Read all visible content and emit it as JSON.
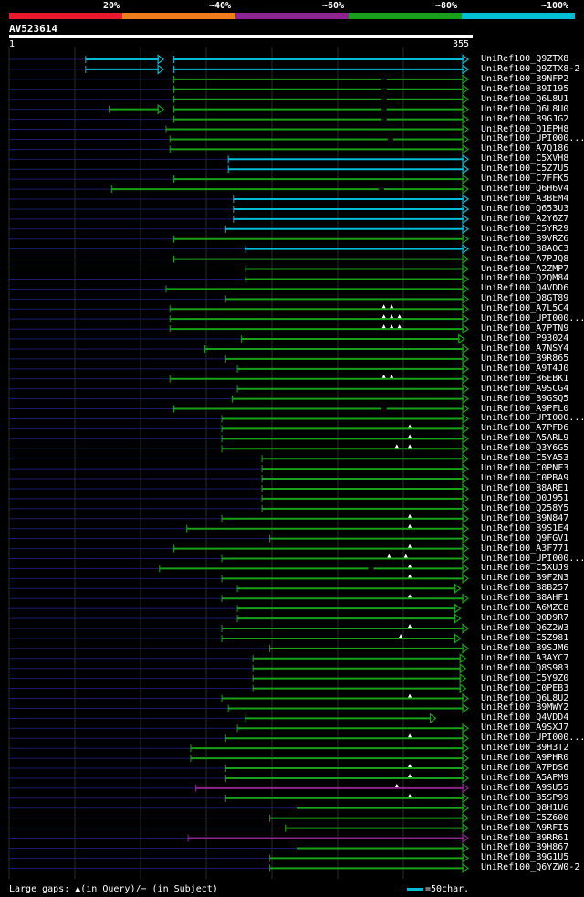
{
  "legend": {
    "labels": [
      "20%",
      "~40%",
      "~60%",
      "~80%",
      "~100%"
    ],
    "colors": [
      "#e8192c",
      "#f07d1d",
      "#8e248e",
      "#18a018",
      "#00bcd4"
    ]
  },
  "query": {
    "name": "AV523614",
    "start": "1",
    "end": "355",
    "length": 355
  },
  "footer": {
    "gaps_text": "Large gaps: ▲(in Query)/− (in Subject)",
    "scale_text": "=50char."
  },
  "hits": [
    {
      "name": "UniRef100_Q9ZTX8",
      "color": "cyan",
      "segments": [
        [
          60,
          120,
          true
        ],
        [
          128,
          355,
          true
        ]
      ],
      "gaps": []
    },
    {
      "name": "UniRef100_Q9ZTX8-2",
      "color": "cyan",
      "segments": [
        [
          60,
          120,
          true
        ],
        [
          128,
          355,
          true
        ]
      ],
      "gaps": []
    },
    {
      "name": "UniRef100_B9NFP2",
      "color": "green",
      "segments": [
        [
          128,
          355,
          true
        ]
      ],
      "gaps": [
        {
          "t": "s",
          "p": 290
        }
      ]
    },
    {
      "name": "UniRef100_B9I195",
      "color": "green",
      "segments": [
        [
          128,
          355,
          true
        ]
      ],
      "gaps": [
        {
          "t": "s",
          "p": 290
        }
      ]
    },
    {
      "name": "UniRef100_Q6L8U1",
      "color": "green",
      "segments": [
        [
          128,
          355,
          true
        ]
      ],
      "gaps": [
        {
          "t": "s",
          "p": 290
        }
      ]
    },
    {
      "name": "UniRef100_Q6L8U0",
      "color": "green",
      "segments": [
        [
          78,
          120,
          true
        ],
        [
          128,
          355,
          true
        ]
      ],
      "gaps": [
        {
          "t": "s",
          "p": 290
        }
      ]
    },
    {
      "name": "UniRef100_B9GJG2",
      "color": "green",
      "segments": [
        [
          128,
          355,
          true
        ]
      ],
      "gaps": [
        {
          "t": "s",
          "p": 290
        }
      ]
    },
    {
      "name": "UniRef100_Q1EPH8",
      "color": "green",
      "segments": [
        [
          122,
          355,
          true
        ]
      ],
      "gaps": []
    },
    {
      "name": "UniRef100_UPI000...",
      "color": "green",
      "segments": [
        [
          125,
          355,
          true
        ]
      ],
      "gaps": [
        {
          "t": "s",
          "p": 295
        }
      ]
    },
    {
      "name": "UniRef100_A7Q186",
      "color": "green",
      "segments": [
        [
          125,
          355,
          true
        ]
      ],
      "gaps": []
    },
    {
      "name": "UniRef100_C5XVH8",
      "color": "cyan",
      "segments": [
        [
          170,
          355,
          true
        ]
      ],
      "gaps": []
    },
    {
      "name": "UniRef100_C5Z7U5",
      "color": "cyan",
      "segments": [
        [
          170,
          355,
          true
        ]
      ],
      "gaps": []
    },
    {
      "name": "UniRef100_C7FFK5",
      "color": "green",
      "segments": [
        [
          128,
          355,
          true
        ]
      ],
      "gaps": []
    },
    {
      "name": "UniRef100_Q6H6V4",
      "color": "green",
      "segments": [
        [
          80,
          355,
          true
        ]
      ],
      "gaps": [
        {
          "t": "s",
          "p": 288
        }
      ]
    },
    {
      "name": "UniRef100_A3BEM4",
      "color": "cyan",
      "segments": [
        [
          174,
          355,
          true
        ]
      ],
      "gaps": []
    },
    {
      "name": "UniRef100_Q653U3",
      "color": "cyan",
      "segments": [
        [
          174,
          355,
          true
        ]
      ],
      "gaps": []
    },
    {
      "name": "UniRef100_A2Y6Z7",
      "color": "cyan",
      "segments": [
        [
          174,
          355,
          true
        ]
      ],
      "gaps": []
    },
    {
      "name": "UniRef100_C5YR29",
      "color": "cyan",
      "segments": [
        [
          168,
          355,
          true
        ]
      ],
      "gaps": []
    },
    {
      "name": "UniRef100_B9VRZ6",
      "color": "green",
      "segments": [
        [
          128,
          355,
          true
        ]
      ],
      "gaps": []
    },
    {
      "name": "UniRef100_B8AOC3",
      "color": "cyan",
      "segments": [
        [
          183,
          355,
          true
        ]
      ],
      "gaps": []
    },
    {
      "name": "UniRef100_A7PJQ8",
      "color": "green",
      "segments": [
        [
          128,
          355,
          true
        ]
      ],
      "gaps": []
    },
    {
      "name": "UniRef100_A2ZMP7",
      "color": "green",
      "segments": [
        [
          183,
          355,
          true
        ]
      ],
      "gaps": []
    },
    {
      "name": "UniRef100_Q2QM84",
      "color": "green",
      "segments": [
        [
          183,
          355,
          true
        ]
      ],
      "gaps": []
    },
    {
      "name": "UniRef100_Q4VDD6",
      "color": "green",
      "segments": [
        [
          122,
          355,
          true
        ]
      ],
      "gaps": []
    },
    {
      "name": "UniRef100_Q8GT89",
      "color": "green",
      "segments": [
        [
          168,
          355,
          true
        ]
      ],
      "gaps": []
    },
    {
      "name": "UniRef100_A7L5C4",
      "color": "green",
      "segments": [
        [
          125,
          355,
          true
        ]
      ],
      "gaps": [
        {
          "t": "q",
          "p": 290
        },
        {
          "t": "q",
          "p": 296
        }
      ]
    },
    {
      "name": "UniRef100_UPI000...",
      "color": "green",
      "segments": [
        [
          125,
          355,
          true
        ]
      ],
      "gaps": [
        {
          "t": "q",
          "p": 290
        },
        {
          "t": "q",
          "p": 296
        },
        {
          "t": "q",
          "p": 302
        }
      ]
    },
    {
      "name": "UniRef100_A7PTN9",
      "color": "green",
      "segments": [
        [
          125,
          355,
          true
        ]
      ],
      "gaps": [
        {
          "t": "q",
          "p": 290
        },
        {
          "t": "q",
          "p": 296
        },
        {
          "t": "q",
          "p": 302
        }
      ]
    },
    {
      "name": "UniRef100_P93024",
      "color": "green",
      "segments": [
        [
          180,
          352,
          true
        ]
      ],
      "gaps": []
    },
    {
      "name": "UniRef100_A7NSY4",
      "color": "green",
      "segments": [
        [
          152,
          355,
          true
        ]
      ],
      "gaps": []
    },
    {
      "name": "UniRef100_B9R865",
      "color": "green",
      "segments": [
        [
          168,
          355,
          true
        ]
      ],
      "gaps": []
    },
    {
      "name": "UniRef100_A9T4J0",
      "color": "green",
      "segments": [
        [
          177,
          355,
          true
        ]
      ],
      "gaps": []
    },
    {
      "name": "UniRef100_B6EBK1",
      "color": "green",
      "segments": [
        [
          125,
          355,
          true
        ]
      ],
      "gaps": [
        {
          "t": "q",
          "p": 290
        },
        {
          "t": "q",
          "p": 296
        }
      ]
    },
    {
      "name": "UniRef100_A9SCG4",
      "color": "green",
      "segments": [
        [
          177,
          355,
          true
        ]
      ],
      "gaps": []
    },
    {
      "name": "UniRef100_B9GSQ5",
      "color": "green",
      "segments": [
        [
          173,
          355,
          true
        ]
      ],
      "gaps": []
    },
    {
      "name": "UniRef100_A9PFL0",
      "color": "green",
      "segments": [
        [
          128,
          355,
          true
        ]
      ],
      "gaps": [
        {
          "t": "s",
          "p": 290
        }
      ]
    },
    {
      "name": "UniRef100_UPI000...",
      "color": "green",
      "segments": [
        [
          165,
          355,
          true
        ]
      ],
      "gaps": []
    },
    {
      "name": "UniRef100_A7PFD6",
      "color": "green",
      "segments": [
        [
          165,
          355,
          true
        ]
      ],
      "gaps": [
        {
          "t": "q",
          "p": 310
        }
      ]
    },
    {
      "name": "UniRef100_A5ARL9",
      "color": "green",
      "segments": [
        [
          165,
          355,
          true
        ]
      ],
      "gaps": [
        {
          "t": "q",
          "p": 310
        }
      ]
    },
    {
      "name": "UniRef100_Q3Y6G5",
      "color": "green",
      "segments": [
        [
          165,
          355,
          true
        ]
      ],
      "gaps": [
        {
          "t": "q",
          "p": 300
        },
        {
          "t": "q",
          "p": 310
        }
      ]
    },
    {
      "name": "UniRef100_C5YA53",
      "color": "green",
      "segments": [
        [
          196,
          355,
          true
        ]
      ],
      "gaps": []
    },
    {
      "name": "UniRef100_C0PNF3",
      "color": "green",
      "segments": [
        [
          196,
          355,
          true
        ]
      ],
      "gaps": []
    },
    {
      "name": "UniRef100_C0PBA9",
      "color": "green",
      "segments": [
        [
          196,
          355,
          true
        ]
      ],
      "gaps": []
    },
    {
      "name": "UniRef100_B8ARE1",
      "color": "green",
      "segments": [
        [
          196,
          355,
          true
        ]
      ],
      "gaps": []
    },
    {
      "name": "UniRef100_Q0J951",
      "color": "green",
      "segments": [
        [
          196,
          355,
          true
        ]
      ],
      "gaps": []
    },
    {
      "name": "UniRef100_Q258Y5",
      "color": "green",
      "segments": [
        [
          196,
          355,
          true
        ]
      ],
      "gaps": []
    },
    {
      "name": "UniRef100_B9N847",
      "color": "green",
      "segments": [
        [
          165,
          355,
          true
        ]
      ],
      "gaps": [
        {
          "t": "q",
          "p": 310
        }
      ]
    },
    {
      "name": "UniRef100_B9S1E4",
      "color": "green",
      "segments": [
        [
          138,
          355,
          true
        ]
      ],
      "gaps": [
        {
          "t": "q",
          "p": 310
        }
      ]
    },
    {
      "name": "UniRef100_Q9FGV1",
      "color": "green",
      "segments": [
        [
          202,
          355,
          true
        ]
      ],
      "gaps": []
    },
    {
      "name": "UniRef100_A3F771",
      "color": "green",
      "segments": [
        [
          128,
          355,
          true
        ]
      ],
      "gaps": [
        {
          "t": "q",
          "p": 310
        }
      ]
    },
    {
      "name": "UniRef100_UPI000...",
      "color": "green",
      "segments": [
        [
          165,
          355,
          true
        ]
      ],
      "gaps": [
        {
          "t": "q",
          "p": 294
        },
        {
          "t": "q",
          "p": 307
        }
      ]
    },
    {
      "name": "UniRef100_C5XUJ9",
      "color": "green",
      "segments": [
        [
          117,
          355,
          true
        ]
      ],
      "gaps": [
        {
          "t": "s",
          "p": 280
        },
        {
          "t": "q",
          "p": 310
        }
      ]
    },
    {
      "name": "UniRef100_B9F2N3",
      "color": "green",
      "segments": [
        [
          165,
          355,
          true
        ]
      ],
      "gaps": [
        {
          "t": "q",
          "p": 310
        }
      ]
    },
    {
      "name": "UniRef100_B8B257",
      "color": "green",
      "segments": [
        [
          177,
          349,
          true
        ]
      ],
      "gaps": []
    },
    {
      "name": "UniRef100_B8AHF1",
      "color": "green",
      "segments": [
        [
          165,
          355,
          true
        ]
      ],
      "gaps": [
        {
          "t": "q",
          "p": 310
        }
      ]
    },
    {
      "name": "UniRef100_A6MZC8",
      "color": "green",
      "segments": [
        [
          177,
          349,
          true
        ]
      ],
      "gaps": []
    },
    {
      "name": "UniRef100_Q0D9R7",
      "color": "green",
      "segments": [
        [
          177,
          349,
          true
        ]
      ],
      "gaps": []
    },
    {
      "name": "UniRef100_Q6Z2W3",
      "color": "green",
      "segments": [
        [
          165,
          355,
          true
        ]
      ],
      "gaps": [
        {
          "t": "q",
          "p": 310
        }
      ]
    },
    {
      "name": "UniRef100_C5Z981",
      "color": "green",
      "segments": [
        [
          165,
          349,
          true
        ]
      ],
      "gaps": [
        {
          "t": "q",
          "p": 303
        }
      ]
    },
    {
      "name": "UniRef100_B9SJM6",
      "color": "green",
      "segments": [
        [
          202,
          355,
          true
        ]
      ],
      "gaps": []
    },
    {
      "name": "UniRef100_A3AYC7",
      "color": "green",
      "segments": [
        [
          189,
          353,
          true
        ]
      ],
      "gaps": []
    },
    {
      "name": "UniRef100_Q8S983",
      "color": "green",
      "segments": [
        [
          189,
          353,
          true
        ]
      ],
      "gaps": []
    },
    {
      "name": "UniRef100_C5Y9Z0",
      "color": "green",
      "segments": [
        [
          189,
          353,
          true
        ]
      ],
      "gaps": []
    },
    {
      "name": "UniRef100_C0PEB3",
      "color": "green",
      "segments": [
        [
          189,
          353,
          true
        ]
      ],
      "gaps": []
    },
    {
      "name": "UniRef100_Q6L8U2",
      "color": "green",
      "segments": [
        [
          165,
          355,
          true
        ]
      ],
      "gaps": [
        {
          "t": "q",
          "p": 310
        }
      ]
    },
    {
      "name": "UniRef100_B9MWY2",
      "color": "green",
      "segments": [
        [
          170,
          355,
          true
        ]
      ],
      "gaps": []
    },
    {
      "name": "UniRef100_Q4VDD4",
      "color": "green",
      "segments": [
        [
          183,
          330,
          true
        ]
      ],
      "gaps": []
    },
    {
      "name": "UniRef100_A9SXJ7",
      "color": "green",
      "segments": [
        [
          177,
          355,
          true
        ]
      ],
      "gaps": []
    },
    {
      "name": "UniRef100_UPI000...",
      "color": "green",
      "segments": [
        [
          168,
          355,
          true
        ]
      ],
      "gaps": [
        {
          "t": "q",
          "p": 310
        }
      ]
    },
    {
      "name": "UniRef100_B9H3T2",
      "color": "green",
      "segments": [
        [
          141,
          355,
          true
        ]
      ],
      "gaps": []
    },
    {
      "name": "UniRef100_A9PHR0",
      "color": "green",
      "segments": [
        [
          141,
          355,
          true
        ]
      ],
      "gaps": []
    },
    {
      "name": "UniRef100_A7PDS6",
      "color": "green",
      "segments": [
        [
          168,
          355,
          true
        ]
      ],
      "gaps": [
        {
          "t": "q",
          "p": 310
        }
      ]
    },
    {
      "name": "UniRef100_A5APM9",
      "color": "green",
      "segments": [
        [
          168,
          355,
          true
        ]
      ],
      "gaps": [
        {
          "t": "q",
          "p": 310
        }
      ]
    },
    {
      "name": "UniRef100_A9SU55",
      "color": "purple",
      "segments": [
        [
          145,
          355,
          true
        ]
      ],
      "gaps": [
        {
          "t": "q",
          "p": 300
        }
      ]
    },
    {
      "name": "UniRef100_B5SP99",
      "color": "green",
      "segments": [
        [
          168,
          355,
          true
        ]
      ],
      "gaps": [
        {
          "t": "q",
          "p": 310
        }
      ]
    },
    {
      "name": "UniRef100_Q8H1U6",
      "color": "green",
      "segments": [
        [
          223,
          355,
          true
        ]
      ],
      "gaps": []
    },
    {
      "name": "UniRef100_C5Z600",
      "color": "green",
      "segments": [
        [
          202,
          355,
          true
        ]
      ],
      "gaps": []
    },
    {
      "name": "UniRef100_A9RFI5",
      "color": "green",
      "segments": [
        [
          214,
          355,
          true
        ]
      ],
      "gaps": []
    },
    {
      "name": "UniRef100_B9RR61",
      "color": "purple",
      "segments": [
        [
          139,
          355,
          true
        ]
      ],
      "gaps": []
    },
    {
      "name": "UniRef100_B9H867",
      "color": "green",
      "segments": [
        [
          223,
          355,
          true
        ]
      ],
      "gaps": []
    },
    {
      "name": "UniRef100_B9G1U5",
      "color": "green",
      "segments": [
        [
          202,
          355,
          true
        ]
      ],
      "gaps": []
    },
    {
      "name": "UniRef100_Q6YZW0-2",
      "color": "green",
      "segments": [
        [
          202,
          355,
          true
        ]
      ],
      "gaps": []
    }
  ]
}
